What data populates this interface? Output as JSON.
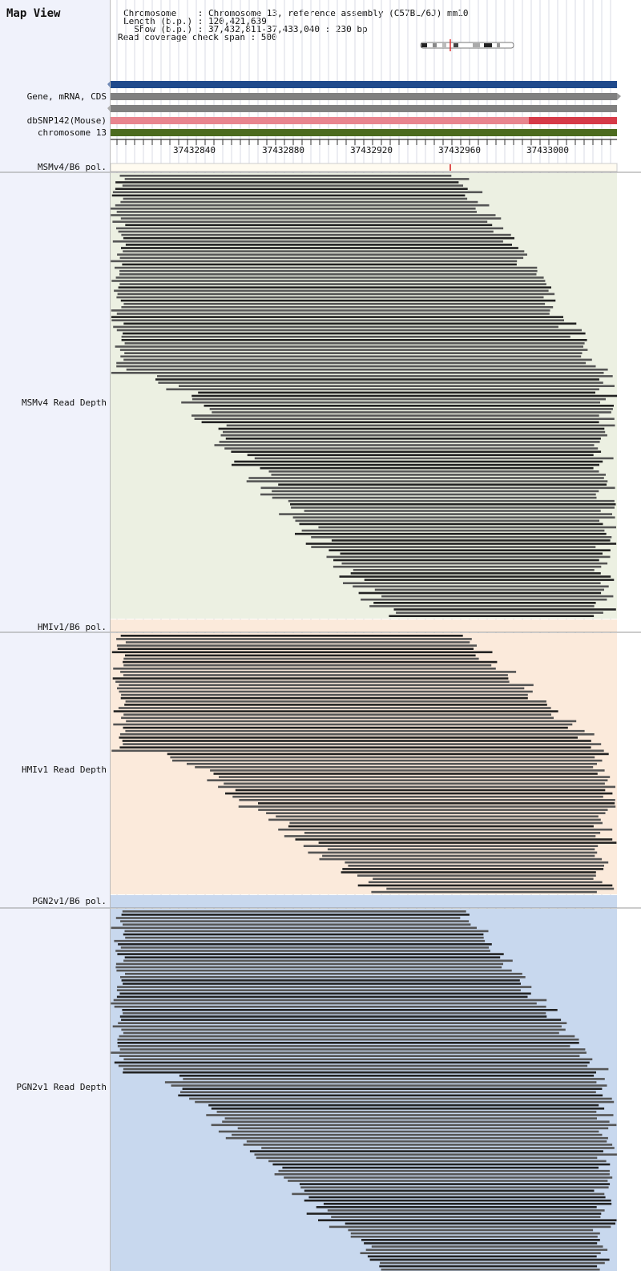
{
  "app_title": "Map View",
  "info": {
    "rows": [
      {
        "key": "Chromosome    ",
        "value": "Chromosome 13, reference assembly (C57BL/6J) mm10"
      },
      {
        "key": "Length (b.p.) ",
        "value": "120,421,639"
      },
      {
        "key": "  Show (b.p.) ",
        "value": "37,432,811-37,433,040 : 230 bp"
      }
    ],
    "read_check": "Read coverage check span : 500"
  },
  "tracks": {
    "gene": "Gene, mRNA, CDS",
    "dbsnp": "dbSNP142(Mouse)",
    "chrom": "chromosome 13"
  },
  "ruler": {
    "ticks": [
      "37432840",
      "37432880",
      "37432920",
      "37432960",
      "37433000"
    ]
  },
  "colors": {
    "accent_blue": "#1f4a8c",
    "gene_grey": "#808080",
    "snp_pink": "#e8858f",
    "snp_red": "#d63a48",
    "chrom_green": "#4c6b1f",
    "msm_bg": "#ecf0e2",
    "hmi_bg": "#fbeadb",
    "pgn_bg": "#c8d8ee",
    "polymorphism_marker": "#e05050"
  },
  "samples": [
    {
      "pol_label": "MSMv4/B6 pol.",
      "depth_label": "MSMv4 Read Depth"
    },
    {
      "pol_label": "HMIv1/B6 pol.",
      "depth_label": "HMIv1 Read Depth"
    },
    {
      "pol_label": "PGN2v1/B6 pol.",
      "depth_label": "PGN2v1 Read Depth"
    }
  ]
}
